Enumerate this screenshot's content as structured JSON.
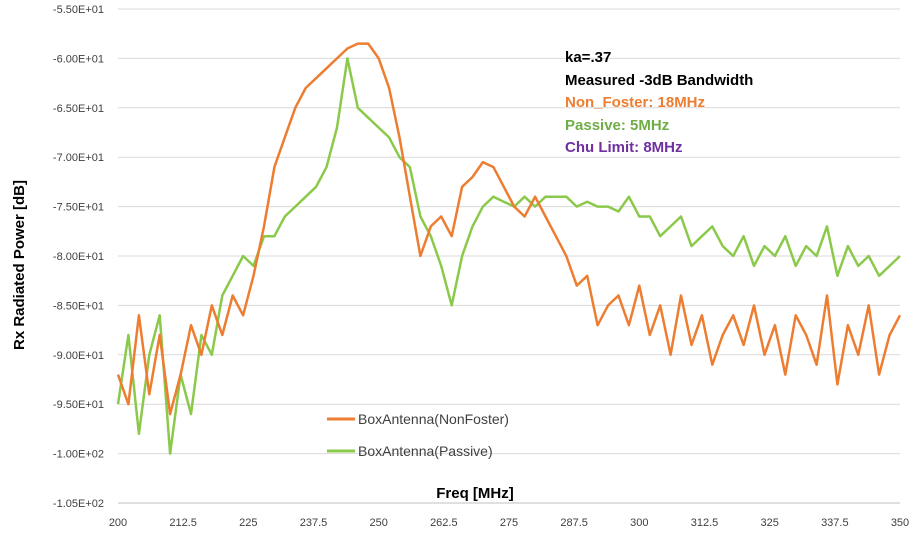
{
  "chart_data": {
    "type": "line",
    "xlabel": "Freq [MHz]",
    "ylabel": "Rx Radiated Power [dB]",
    "xlim": [
      200,
      350
    ],
    "ylim": [
      -105,
      -55
    ],
    "x_ticks": [
      "200",
      "212.5",
      "225",
      "237.5",
      "250",
      "262.5",
      "275",
      "287.5",
      "300",
      "312.5",
      "325",
      "337.5",
      "350"
    ],
    "y_ticks": [
      "-5.50E+01",
      "-6.00E+01",
      "-6.50E+01",
      "-7.00E+01",
      "-7.50E+01",
      "-8.00E+01",
      "-8.50E+01",
      "-9.00E+01",
      "-9.50E+01",
      "-1.00E+02",
      "-1.05E+02"
    ],
    "y_tick_values": [
      -55,
      -60,
      -65,
      -70,
      -75,
      -80,
      -85,
      -90,
      -95,
      -100,
      -105
    ],
    "grid": "horizontal",
    "legend_position": "lower-center",
    "annotations": [
      {
        "text": "ka=.37",
        "color": "#000000"
      },
      {
        "text": "Measured -3dB Bandwidth",
        "color": "#000000"
      },
      {
        "text": "Non_Foster: 18MHz",
        "color": "#ED7D31"
      },
      {
        "text": "Passive: 5MHz",
        "color": "#70AD47"
      },
      {
        "text": "Chu Limit: 8MHz",
        "color": "#7030A0"
      }
    ],
    "series": [
      {
        "name": "BoxAntenna(NonFoster)",
        "color": "#ED7D31",
        "x": [
          200,
          202,
          204,
          206,
          208,
          210,
          212,
          214,
          216,
          218,
          220,
          222,
          224,
          226,
          228,
          230,
          232,
          234,
          236,
          238,
          240,
          242,
          244,
          246,
          248,
          250,
          252,
          254,
          256,
          258,
          260,
          262,
          264,
          266,
          268,
          270,
          272,
          274,
          276,
          278,
          280,
          282,
          284,
          286,
          288,
          290,
          292,
          294,
          296,
          298,
          300,
          302,
          304,
          306,
          308,
          310,
          312,
          314,
          316,
          318,
          320,
          322,
          324,
          326,
          328,
          330,
          332,
          334,
          336,
          338,
          340,
          342,
          344,
          346,
          348,
          350
        ],
        "y": [
          -92,
          -95,
          -86,
          -94,
          -88,
          -96,
          -92,
          -87,
          -90,
          -85,
          -88,
          -84,
          -86,
          -82,
          -77,
          -71,
          -68,
          -65,
          -63,
          -62,
          -61,
          -60,
          -59,
          -58.5,
          -58.5,
          -60,
          -63,
          -68,
          -74,
          -80,
          -77,
          -76,
          -78,
          -73,
          -72,
          -70.5,
          -71,
          -73,
          -75,
          -76,
          -74,
          -76,
          -78,
          -80,
          -83,
          -82,
          -87,
          -85,
          -84,
          -87,
          -83,
          -88,
          -85,
          -90,
          -84,
          -89,
          -86,
          -91,
          -88,
          -86,
          -89,
          -85,
          -90,
          -87,
          -92,
          -86,
          -88,
          -91,
          -84,
          -93,
          -87,
          -90,
          -85,
          -92,
          -88,
          -86
        ]
      },
      {
        "name": "BoxAntenna(Passive)",
        "color": "#8BC94A",
        "x": [
          200,
          202,
          204,
          206,
          208,
          210,
          212,
          214,
          216,
          218,
          220,
          222,
          224,
          226,
          228,
          230,
          232,
          234,
          236,
          238,
          240,
          242,
          244,
          246,
          248,
          250,
          252,
          254,
          256,
          258,
          260,
          262,
          264,
          266,
          268,
          270,
          272,
          274,
          276,
          278,
          280,
          282,
          284,
          286,
          288,
          290,
          292,
          294,
          296,
          298,
          300,
          302,
          304,
          306,
          308,
          310,
          312,
          314,
          316,
          318,
          320,
          322,
          324,
          326,
          328,
          330,
          332,
          334,
          336,
          338,
          340,
          342,
          344,
          346,
          348,
          350
        ],
        "y": [
          -95,
          -88,
          -98,
          -90,
          -86,
          -100,
          -92,
          -96,
          -88,
          -90,
          -84,
          -82,
          -80,
          -81,
          -78,
          -78,
          -76,
          -75,
          -74,
          -73,
          -71,
          -67,
          -60,
          -65,
          -66,
          -67,
          -68,
          -70,
          -71,
          -76,
          -78,
          -81,
          -85,
          -80,
          -77,
          -75,
          -74,
          -74.5,
          -75,
          -74,
          -75,
          -74,
          -74,
          -74,
          -75,
          -74.5,
          -75,
          -75,
          -75.5,
          -74,
          -76,
          -76,
          -78,
          -77,
          -76,
          -79,
          -78,
          -77,
          -79,
          -80,
          -78,
          -81,
          -79,
          -80,
          -78,
          -81,
          -79,
          -80,
          -77,
          -82,
          -79,
          -81,
          -80,
          -82,
          -81,
          -80
        ]
      }
    ]
  }
}
